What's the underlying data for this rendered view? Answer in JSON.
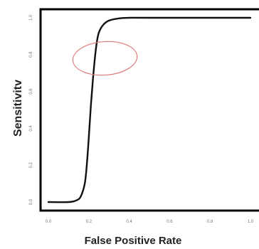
{
  "chart_data": {
    "type": "line",
    "title": "",
    "xlabel": "False Positive Rate",
    "ylabel": "Sensitivitv",
    "xlim": [
      0.0,
      1.0
    ],
    "ylim": [
      0.0,
      1.0
    ],
    "x_ticks": [
      "0.0",
      "0.2",
      "0.4",
      "0.6",
      "0.8",
      "1.0"
    ],
    "y_ticks": [
      "0.0",
      "0.2",
      "0.4",
      "0.6",
      "0.8",
      "1.0"
    ],
    "grid": false,
    "legend": "none",
    "series": [
      {
        "x": [
          0.0,
          0.1,
          0.14,
          0.16,
          0.18,
          0.19,
          0.2,
          0.21,
          0.22,
          0.23,
          0.24,
          0.25,
          0.27,
          0.3,
          0.35,
          0.4,
          0.5,
          1.0
        ],
        "y": [
          0.0,
          0.0,
          0.01,
          0.03,
          0.1,
          0.2,
          0.35,
          0.52,
          0.66,
          0.78,
          0.87,
          0.92,
          0.96,
          0.985,
          0.997,
          1.0,
          1.0,
          1.0
        ],
        "color": "#111111"
      }
    ],
    "annotations": [
      {
        "type": "ellipse",
        "cx": 0.28,
        "cy": 0.78,
        "rx": 0.11,
        "ry": 0.11,
        "color": "#e07a7a"
      }
    ]
  }
}
